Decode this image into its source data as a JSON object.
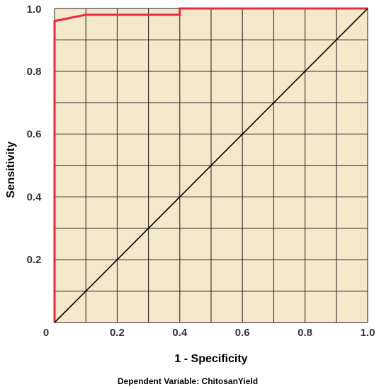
{
  "chart_data": {
    "type": "line",
    "xlabel": "1 - Specificity",
    "ylabel": "Sensitivity",
    "footnote": "Dependent Variable: ChitosanYield",
    "xlim": [
      0,
      1
    ],
    "ylim": [
      0,
      1
    ],
    "x_ticks": [
      "0",
      "0.2",
      "0.4",
      "0.6",
      "0.8",
      "1.0"
    ],
    "y_ticks": [
      "0",
      "0.2",
      "0.4",
      "0.6",
      "0.8",
      "1.0"
    ],
    "x_tick_values": [
      0,
      0.2,
      0.4,
      0.6,
      0.8,
      1.0
    ],
    "y_tick_values": [
      0,
      0.2,
      0.4,
      0.6,
      0.8,
      1.0
    ],
    "grid": true,
    "plot_background": "#f3e8c9",
    "series": [
      {
        "color": "#e8293e",
        "x": [
          0,
          0,
          0,
          0,
          0.1,
          0.4,
          0.4,
          1.0
        ],
        "y": [
          0,
          0.96,
          0.96,
          0.96,
          0.98,
          0.98,
          1.0,
          1.0
        ]
      },
      {
        "color": "#000000",
        "x": [
          0,
          1.0
        ],
        "y": [
          0,
          1.0
        ]
      }
    ]
  }
}
